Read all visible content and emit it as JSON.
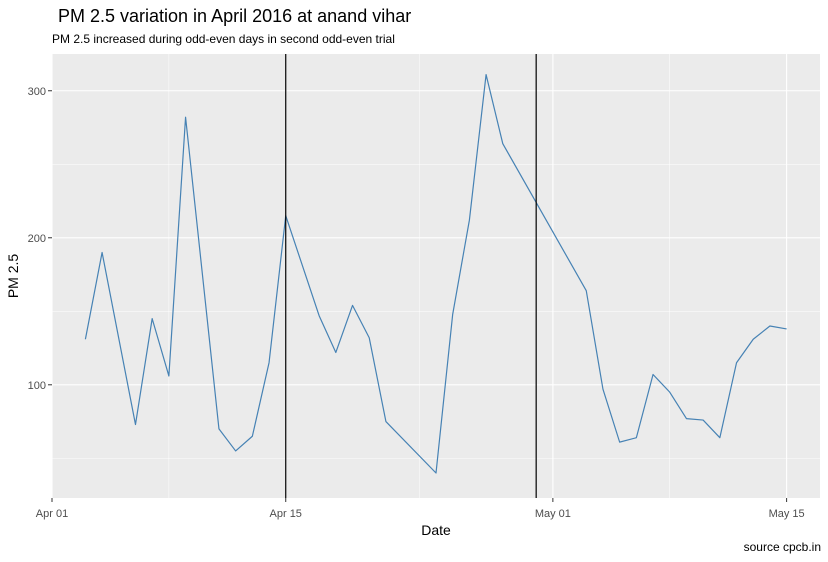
{
  "chart_data": {
    "type": "line",
    "title": "PM 2.5 variation in April 2016 at anand vihar",
    "subtitle": "PM 2.5 increased during odd-even days in second odd-even trial",
    "xlabel": "Date",
    "ylabel": "PM 2.5",
    "caption": "source cpcb.in",
    "x_type": "date",
    "xlim": [
      "2016-04-01",
      "2016-05-17"
    ],
    "ylim": [
      23,
      325
    ],
    "x_ticks": [
      {
        "date": "2016-04-01",
        "label": "Apr 01"
      },
      {
        "date": "2016-04-15",
        "label": "Apr 15"
      },
      {
        "date": "2016-05-01",
        "label": "May 01"
      },
      {
        "date": "2016-05-15",
        "label": "May 15"
      }
    ],
    "y_ticks": [
      100,
      200,
      300
    ],
    "grid": true,
    "line_color": "#4682b4",
    "background_color": "#ebebeb",
    "vlines": [
      "2016-04-15",
      "2016-04-30"
    ],
    "series": [
      {
        "points": [
          {
            "x": "2016-04-03",
            "y": 131
          },
          {
            "x": "2016-04-04",
            "y": 190
          },
          {
            "x": "2016-04-06",
            "y": 73
          },
          {
            "x": "2016-04-07",
            "y": 145
          },
          {
            "x": "2016-04-08",
            "y": 106
          },
          {
            "x": "2016-04-09",
            "y": 282
          },
          {
            "x": "2016-04-11",
            "y": 70
          },
          {
            "x": "2016-04-12",
            "y": 55
          },
          {
            "x": "2016-04-13",
            "y": 65
          },
          {
            "x": "2016-04-14",
            "y": 115
          },
          {
            "x": "2016-04-15",
            "y": 215
          },
          {
            "x": "2016-04-17",
            "y": 147
          },
          {
            "x": "2016-04-18",
            "y": 122
          },
          {
            "x": "2016-04-19",
            "y": 154
          },
          {
            "x": "2016-04-20",
            "y": 132
          },
          {
            "x": "2016-04-21",
            "y": 75
          },
          {
            "x": "2016-04-24",
            "y": 40
          },
          {
            "x": "2016-04-25",
            "y": 148
          },
          {
            "x": "2016-04-26",
            "y": 212
          },
          {
            "x": "2016-04-27",
            "y": 311
          },
          {
            "x": "2016-04-28",
            "y": 264
          },
          {
            "x": "2016-05-03",
            "y": 164
          },
          {
            "x": "2016-05-04",
            "y": 97
          },
          {
            "x": "2016-05-05",
            "y": 61
          },
          {
            "x": "2016-05-06",
            "y": 64
          },
          {
            "x": "2016-05-07",
            "y": 107
          },
          {
            "x": "2016-05-08",
            "y": 95
          },
          {
            "x": "2016-05-09",
            "y": 77
          },
          {
            "x": "2016-05-10",
            "y": 76
          },
          {
            "x": "2016-05-11",
            "y": 64
          },
          {
            "x": "2016-05-12",
            "y": 115
          },
          {
            "x": "2016-05-13",
            "y": 131
          },
          {
            "x": "2016-05-14",
            "y": 140
          },
          {
            "x": "2016-05-15",
            "y": 138
          }
        ]
      }
    ]
  }
}
